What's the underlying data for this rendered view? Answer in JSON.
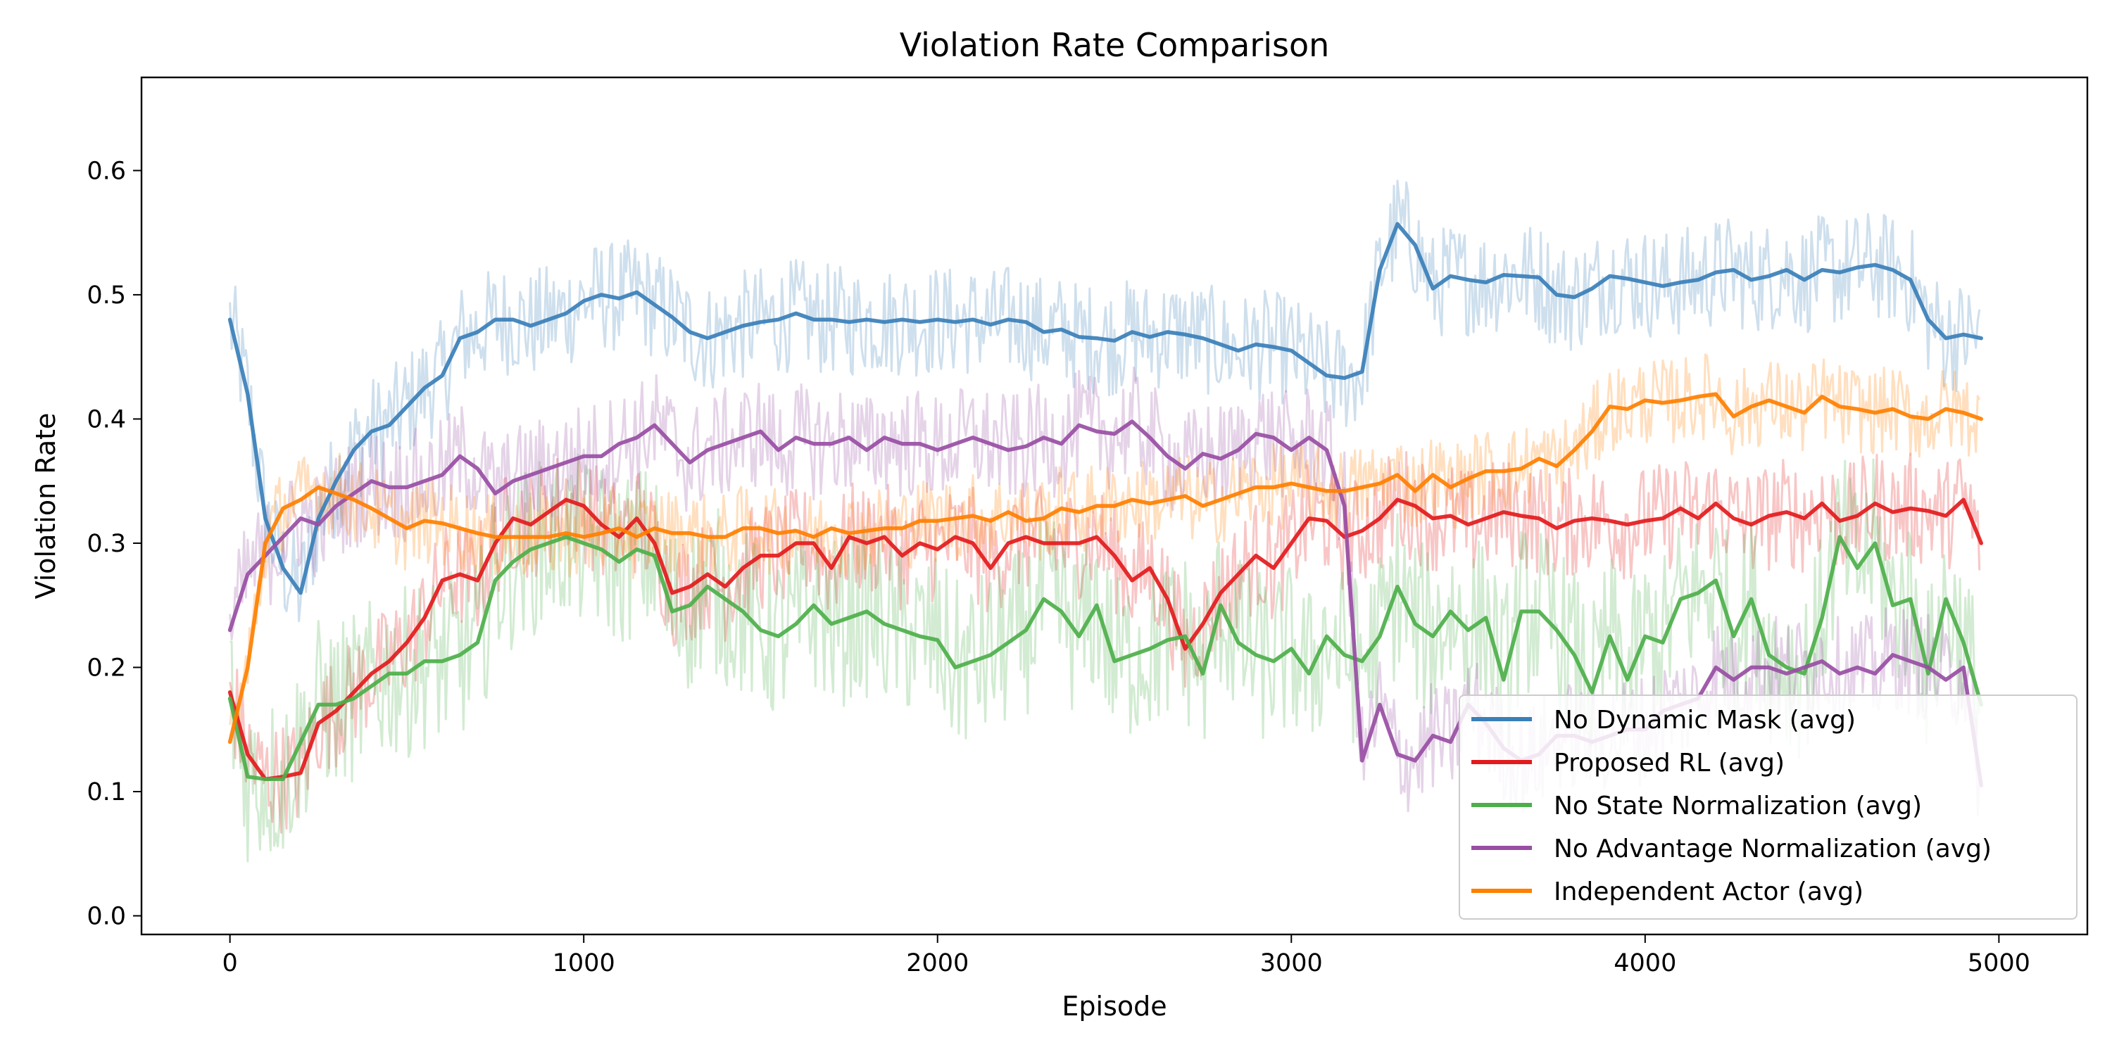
{
  "chart_data": {
    "type": "line",
    "title": "Violation Rate Comparison",
    "xlabel": "Episode",
    "ylabel": "Violation Rate",
    "xlim": [
      -250,
      5250
    ],
    "ylim": [
      -0.015,
      0.675
    ],
    "xticks": [
      0,
      1000,
      2000,
      3000,
      4000,
      5000
    ],
    "xtick_labels": [
      "0",
      "1000",
      "2000",
      "3000",
      "4000",
      "5000"
    ],
    "yticks": [
      0.0,
      0.1,
      0.2,
      0.3,
      0.4,
      0.5,
      0.6
    ],
    "ytick_labels": [
      "0.0",
      "0.1",
      "0.2",
      "0.3",
      "0.4",
      "0.5",
      "0.6"
    ],
    "grid": false,
    "legend_position": "bottom-right",
    "series": [
      {
        "name": "No Dynamic Mask (avg)",
        "color": "#3a7fb8",
        "raw_band": {
          "noise": 0.045
        },
        "x": [
          0,
          50,
          100,
          150,
          200,
          250,
          300,
          350,
          400,
          450,
          500,
          550,
          600,
          650,
          700,
          750,
          800,
          850,
          900,
          950,
          1000,
          1050,
          1100,
          1150,
          1200,
          1250,
          1300,
          1350,
          1400,
          1450,
          1500,
          1550,
          1600,
          1650,
          1700,
          1750,
          1800,
          1850,
          1900,
          1950,
          2000,
          2050,
          2100,
          2150,
          2200,
          2250,
          2300,
          2350,
          2400,
          2450,
          2500,
          2550,
          2600,
          2650,
          2700,
          2750,
          2800,
          2850,
          2900,
          2950,
          3000,
          3050,
          3100,
          3150,
          3200,
          3250,
          3300,
          3350,
          3400,
          3450,
          3500,
          3550,
          3600,
          3650,
          3700,
          3750,
          3800,
          3850,
          3900,
          3950,
          4000,
          4050,
          4100,
          4150,
          4200,
          4250,
          4300,
          4350,
          4400,
          4450,
          4500,
          4550,
          4600,
          4650,
          4700,
          4750,
          4800,
          4850,
          4900,
          4950
        ],
        "y": [
          0.48,
          0.42,
          0.32,
          0.28,
          0.26,
          0.32,
          0.35,
          0.375,
          0.39,
          0.395,
          0.41,
          0.425,
          0.435,
          0.465,
          0.47,
          0.48,
          0.48,
          0.475,
          0.48,
          0.485,
          0.495,
          0.5,
          0.497,
          0.502,
          0.492,
          0.482,
          0.47,
          0.465,
          0.47,
          0.475,
          0.478,
          0.48,
          0.485,
          0.48,
          0.48,
          0.478,
          0.48,
          0.478,
          0.48,
          0.478,
          0.48,
          0.478,
          0.48,
          0.476,
          0.48,
          0.478,
          0.47,
          0.472,
          0.466,
          0.465,
          0.463,
          0.47,
          0.466,
          0.47,
          0.468,
          0.465,
          0.46,
          0.455,
          0.46,
          0.458,
          0.455,
          0.445,
          0.435,
          0.433,
          0.438,
          0.52,
          0.557,
          0.54,
          0.505,
          0.515,
          0.512,
          0.51,
          0.516,
          0.515,
          0.514,
          0.5,
          0.498,
          0.505,
          0.515,
          0.513,
          0.51,
          0.507,
          0.51,
          0.512,
          0.518,
          0.52,
          0.512,
          0.515,
          0.52,
          0.512,
          0.52,
          0.518,
          0.522,
          0.524,
          0.52,
          0.512,
          0.48,
          0.465,
          0.468,
          0.465
        ]
      },
      {
        "name": "Proposed RL (avg)",
        "color": "#e31a1c",
        "raw_band": {
          "noise": 0.045
        },
        "x": [
          0,
          50,
          100,
          150,
          200,
          250,
          300,
          350,
          400,
          450,
          500,
          550,
          600,
          650,
          700,
          750,
          800,
          850,
          900,
          950,
          1000,
          1050,
          1100,
          1150,
          1200,
          1250,
          1300,
          1350,
          1400,
          1450,
          1500,
          1550,
          1600,
          1650,
          1700,
          1750,
          1800,
          1850,
          1900,
          1950,
          2000,
          2050,
          2100,
          2150,
          2200,
          2250,
          2300,
          2350,
          2400,
          2450,
          2500,
          2550,
          2600,
          2650,
          2700,
          2750,
          2800,
          2850,
          2900,
          2950,
          3000,
          3050,
          3100,
          3150,
          3200,
          3250,
          3300,
          3350,
          3400,
          3450,
          3500,
          3550,
          3600,
          3650,
          3700,
          3750,
          3800,
          3850,
          3900,
          3950,
          4000,
          4050,
          4100,
          4150,
          4200,
          4250,
          4300,
          4350,
          4400,
          4450,
          4500,
          4550,
          4600,
          4650,
          4700,
          4750,
          4800,
          4850,
          4900,
          4950
        ],
        "y": [
          0.18,
          0.13,
          0.11,
          0.112,
          0.115,
          0.155,
          0.165,
          0.18,
          0.195,
          0.205,
          0.22,
          0.24,
          0.27,
          0.275,
          0.27,
          0.3,
          0.32,
          0.315,
          0.325,
          0.335,
          0.33,
          0.315,
          0.305,
          0.32,
          0.3,
          0.26,
          0.265,
          0.275,
          0.265,
          0.28,
          0.29,
          0.29,
          0.3,
          0.3,
          0.28,
          0.305,
          0.3,
          0.305,
          0.29,
          0.3,
          0.295,
          0.305,
          0.3,
          0.28,
          0.3,
          0.305,
          0.3,
          0.3,
          0.3,
          0.305,
          0.29,
          0.27,
          0.28,
          0.255,
          0.215,
          0.235,
          0.26,
          0.275,
          0.29,
          0.28,
          0.3,
          0.32,
          0.318,
          0.305,
          0.31,
          0.32,
          0.335,
          0.33,
          0.32,
          0.322,
          0.315,
          0.32,
          0.325,
          0.322,
          0.32,
          0.312,
          0.318,
          0.32,
          0.318,
          0.315,
          0.318,
          0.32,
          0.328,
          0.32,
          0.332,
          0.32,
          0.315,
          0.322,
          0.325,
          0.32,
          0.332,
          0.318,
          0.322,
          0.332,
          0.325,
          0.328,
          0.326,
          0.322,
          0.335,
          0.3
        ]
      },
      {
        "name": "No State Normalization (avg)",
        "color": "#4daf4a",
        "raw_band": {
          "noise": 0.07
        },
        "x": [
          0,
          50,
          100,
          150,
          200,
          250,
          300,
          350,
          400,
          450,
          500,
          550,
          600,
          650,
          700,
          750,
          800,
          850,
          900,
          950,
          1000,
          1050,
          1100,
          1150,
          1200,
          1250,
          1300,
          1350,
          1400,
          1450,
          1500,
          1550,
          1600,
          1650,
          1700,
          1750,
          1800,
          1850,
          1900,
          1950,
          2000,
          2050,
          2100,
          2150,
          2200,
          2250,
          2300,
          2350,
          2400,
          2450,
          2500,
          2550,
          2600,
          2650,
          2700,
          2750,
          2800,
          2850,
          2900,
          2950,
          3000,
          3050,
          3100,
          3150,
          3200,
          3250,
          3300,
          3350,
          3400,
          3450,
          3500,
          3550,
          3600,
          3650,
          3700,
          3750,
          3800,
          3850,
          3900,
          3950,
          4000,
          4050,
          4100,
          4150,
          4200,
          4250,
          4300,
          4350,
          4400,
          4450,
          4500,
          4550,
          4600,
          4650,
          4700,
          4750,
          4800,
          4850,
          4900,
          4950
        ],
        "y": [
          0.175,
          0.112,
          0.11,
          0.11,
          0.14,
          0.17,
          0.17,
          0.175,
          0.185,
          0.195,
          0.195,
          0.205,
          0.205,
          0.21,
          0.22,
          0.27,
          0.285,
          0.295,
          0.3,
          0.305,
          0.3,
          0.295,
          0.285,
          0.295,
          0.29,
          0.245,
          0.25,
          0.265,
          0.255,
          0.245,
          0.23,
          0.225,
          0.235,
          0.25,
          0.235,
          0.24,
          0.245,
          0.235,
          0.23,
          0.225,
          0.222,
          0.2,
          0.205,
          0.21,
          0.22,
          0.23,
          0.255,
          0.245,
          0.225,
          0.25,
          0.205,
          0.21,
          0.215,
          0.222,
          0.225,
          0.195,
          0.25,
          0.22,
          0.21,
          0.205,
          0.215,
          0.195,
          0.225,
          0.21,
          0.205,
          0.225,
          0.265,
          0.235,
          0.225,
          0.245,
          0.23,
          0.24,
          0.19,
          0.245,
          0.245,
          0.23,
          0.21,
          0.18,
          0.225,
          0.19,
          0.225,
          0.22,
          0.255,
          0.26,
          0.27,
          0.225,
          0.255,
          0.21,
          0.2,
          0.195,
          0.24,
          0.305,
          0.28,
          0.3,
          0.25,
          0.255,
          0.195,
          0.255,
          0.22,
          0.17
        ]
      },
      {
        "name": "No Advantage Normalization (avg)",
        "color": "#984ea3",
        "raw_band": {
          "noise": 0.045
        },
        "x": [
          0,
          50,
          100,
          150,
          200,
          250,
          300,
          350,
          400,
          450,
          500,
          550,
          600,
          650,
          700,
          750,
          800,
          850,
          900,
          950,
          1000,
          1050,
          1100,
          1150,
          1200,
          1250,
          1300,
          1350,
          1400,
          1450,
          1500,
          1550,
          1600,
          1650,
          1700,
          1750,
          1800,
          1850,
          1900,
          1950,
          2000,
          2050,
          2100,
          2150,
          2200,
          2250,
          2300,
          2350,
          2400,
          2450,
          2500,
          2550,
          2600,
          2650,
          2700,
          2750,
          2800,
          2850,
          2900,
          2950,
          3000,
          3050,
          3100,
          3150,
          3200,
          3250,
          3300,
          3350,
          3400,
          3450,
          3500,
          3550,
          3600,
          3650,
          3700,
          3750,
          3800,
          3850,
          3900,
          3950,
          4000,
          4050,
          4100,
          4150,
          4200,
          4250,
          4300,
          4350,
          4400,
          4450,
          4500,
          4550,
          4600,
          4650,
          4700,
          4750,
          4800,
          4850,
          4900,
          4950
        ],
        "y": [
          0.23,
          0.275,
          0.29,
          0.305,
          0.32,
          0.315,
          0.33,
          0.34,
          0.35,
          0.345,
          0.345,
          0.35,
          0.355,
          0.37,
          0.36,
          0.34,
          0.35,
          0.355,
          0.36,
          0.365,
          0.37,
          0.37,
          0.38,
          0.385,
          0.395,
          0.38,
          0.365,
          0.375,
          0.38,
          0.385,
          0.39,
          0.375,
          0.385,
          0.38,
          0.38,
          0.385,
          0.375,
          0.385,
          0.38,
          0.38,
          0.375,
          0.38,
          0.385,
          0.38,
          0.375,
          0.378,
          0.385,
          0.38,
          0.395,
          0.39,
          0.388,
          0.398,
          0.385,
          0.37,
          0.36,
          0.372,
          0.368,
          0.375,
          0.388,
          0.385,
          0.375,
          0.385,
          0.375,
          0.33,
          0.125,
          0.17,
          0.13,
          0.125,
          0.145,
          0.14,
          0.17,
          0.155,
          0.135,
          0.125,
          0.13,
          0.145,
          0.145,
          0.14,
          0.145,
          0.15,
          0.15,
          0.165,
          0.17,
          0.175,
          0.2,
          0.19,
          0.2,
          0.2,
          0.195,
          0.2,
          0.205,
          0.195,
          0.2,
          0.195,
          0.21,
          0.205,
          0.2,
          0.19,
          0.2,
          0.105
        ]
      },
      {
        "name": "Independent Actor (avg)",
        "color": "#ff7f00",
        "raw_band": {
          "noise": 0.035
        },
        "x": [
          0,
          50,
          100,
          150,
          200,
          250,
          300,
          350,
          400,
          450,
          500,
          550,
          600,
          650,
          700,
          750,
          800,
          850,
          900,
          950,
          1000,
          1050,
          1100,
          1150,
          1200,
          1250,
          1300,
          1350,
          1400,
          1450,
          1500,
          1550,
          1600,
          1650,
          1700,
          1750,
          1800,
          1850,
          1900,
          1950,
          2000,
          2050,
          2100,
          2150,
          2200,
          2250,
          2300,
          2350,
          2400,
          2450,
          2500,
          2550,
          2600,
          2650,
          2700,
          2750,
          2800,
          2850,
          2900,
          2950,
          3000,
          3050,
          3100,
          3150,
          3200,
          3250,
          3300,
          3350,
          3400,
          3450,
          3500,
          3550,
          3600,
          3650,
          3700,
          3750,
          3800,
          3850,
          3900,
          3950,
          4000,
          4050,
          4100,
          4150,
          4200,
          4250,
          4300,
          4350,
          4400,
          4450,
          4500,
          4550,
          4600,
          4650,
          4700,
          4750,
          4800,
          4850,
          4900,
          4950
        ],
        "y": [
          0.14,
          0.2,
          0.3,
          0.328,
          0.335,
          0.345,
          0.34,
          0.335,
          0.328,
          0.32,
          0.312,
          0.318,
          0.316,
          0.312,
          0.308,
          0.305,
          0.305,
          0.305,
          0.305,
          0.308,
          0.305,
          0.308,
          0.312,
          0.305,
          0.312,
          0.308,
          0.308,
          0.305,
          0.305,
          0.312,
          0.312,
          0.308,
          0.31,
          0.305,
          0.312,
          0.308,
          0.31,
          0.312,
          0.312,
          0.318,
          0.318,
          0.32,
          0.322,
          0.318,
          0.325,
          0.318,
          0.32,
          0.328,
          0.325,
          0.33,
          0.33,
          0.335,
          0.332,
          0.335,
          0.338,
          0.33,
          0.335,
          0.34,
          0.345,
          0.345,
          0.348,
          0.345,
          0.342,
          0.342,
          0.345,
          0.348,
          0.355,
          0.342,
          0.355,
          0.345,
          0.352,
          0.358,
          0.358,
          0.36,
          0.368,
          0.362,
          0.375,
          0.39,
          0.41,
          0.408,
          0.415,
          0.413,
          0.415,
          0.418,
          0.42,
          0.402,
          0.41,
          0.415,
          0.41,
          0.405,
          0.418,
          0.41,
          0.408,
          0.405,
          0.408,
          0.402,
          0.4,
          0.408,
          0.405,
          0.4
        ]
      }
    ]
  }
}
